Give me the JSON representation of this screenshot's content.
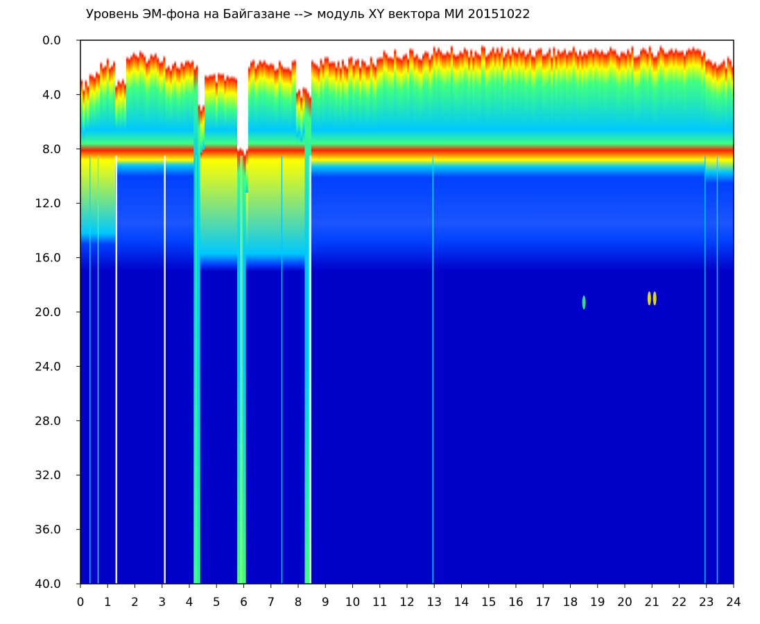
{
  "chart_data": {
    "type": "heatmap",
    "title": "Уровень ЭМ-фона на Байгазане  -->  модуль XY вектора МИ  20151022",
    "xlabel": "",
    "ylabel": "",
    "x_range": [
      0,
      24
    ],
    "y_range": [
      0,
      40
    ],
    "y_inverted": true,
    "grid": false,
    "x_ticks": [
      "0",
      "1",
      "2",
      "3",
      "4",
      "5",
      "6",
      "7",
      "8",
      "9",
      "10",
      "11",
      "12",
      "13",
      "14",
      "15",
      "16",
      "17",
      "18",
      "19",
      "20",
      "21",
      "22",
      "23",
      "24"
    ],
    "y_ticks": [
      "0.0",
      "4.0",
      "8.0",
      "12.0",
      "16.0",
      "20.0",
      "24.0",
      "28.0",
      "32.0",
      "36.0",
      "40.0"
    ],
    "colormap": [
      "#0000c8",
      "#0040ff",
      "#00c8ff",
      "#40ff80",
      "#ffff00",
      "#ff2000",
      "#ffffff"
    ],
    "background_color": "#0a1fd0",
    "notes": "Approximate intensity structure: strong band up to ~8-9 on y, clear gaps near hours 1.3, 3.1, 4.3, 5.9, 8.4; hotspots near hour 21 at y~19"
  }
}
